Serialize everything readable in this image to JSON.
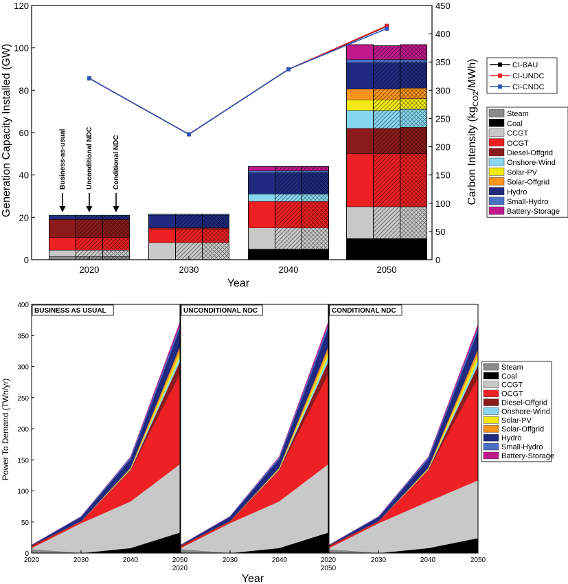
{
  "colors": {
    "Steam": "#8a8a8a",
    "Coal": "#000000",
    "CCGT": "#c8c8c8",
    "OCGT": "#ee2024",
    "Diesel-Offgrid": "#8b1a1a",
    "Onshore-Wind": "#87d7f0",
    "Solar-PV": "#f2ea12",
    "Solar-Offgrid": "#f7941d",
    "Hydro": "#1f2a80",
    "Small-Hydro": "#4a72c4",
    "Battery-Storage": "#c0198c",
    "CI-BAU": "#000000",
    "CI-UNDC": "#e8202a",
    "CI-CNDC": "#2f55b5"
  },
  "chart_data": [
    {
      "type": "bar",
      "stacked": true,
      "xlabel": "Year",
      "ylabel": "Generation Capacity Installed (GW)",
      "y2label_main": "Carbon Intensity (kg",
      "y2label_sub": "CO2",
      "y2label_end": "/MWh)",
      "ylim": [
        0,
        120
      ],
      "y2lim": [
        0,
        450
      ],
      "yticks": [
        "0",
        "20",
        "40",
        "60",
        "80",
        "100",
        "120"
      ],
      "y2ticks": [
        "0",
        "50",
        "100",
        "150",
        "200",
        "250",
        "300",
        "350",
        "400",
        "450"
      ],
      "categories": [
        "2020",
        "2030",
        "2040",
        "2050"
      ],
      "scenarios": [
        "BAU",
        "UNDC",
        "CNDC"
      ],
      "annotations": [
        "Business-as-usual",
        "Unconditional NDC",
        "Conditional NDC"
      ],
      "legend_tech": [
        "Steam",
        "Coal",
        "CCGT",
        "OCGT",
        "Diesel-Offgrid",
        "Onshore-Wind",
        "Solar-PV",
        "Solar-Offgrid",
        "Hydro",
        "Small-Hydro",
        "Battery-Storage"
      ],
      "capacity": {
        "2020": {
          "BAU": {
            "Steam": 1.5,
            "Coal": 0,
            "CCGT": 3,
            "OCGT": 6,
            "Diesel-Offgrid": 8.5,
            "Onshore-Wind": 0,
            "Solar-PV": 0,
            "Solar-Offgrid": 0,
            "Hydro": 1.5,
            "Small-Hydro": 0.5,
            "Battery-Storage": 0
          },
          "UNDC": {
            "Steam": 1.5,
            "Coal": 0,
            "CCGT": 3,
            "OCGT": 6,
            "Diesel-Offgrid": 8.5,
            "Onshore-Wind": 0,
            "Solar-PV": 0,
            "Solar-Offgrid": 0,
            "Hydro": 1.5,
            "Small-Hydro": 0.5,
            "Battery-Storage": 0
          },
          "CNDC": {
            "Steam": 1.5,
            "Coal": 0,
            "CCGT": 3,
            "OCGT": 6,
            "Diesel-Offgrid": 8.5,
            "Onshore-Wind": 0,
            "Solar-PV": 0,
            "Solar-Offgrid": 0,
            "Hydro": 1.5,
            "Small-Hydro": 0.5,
            "Battery-Storage": 0
          }
        },
        "2030": {
          "BAU": {
            "Steam": 0,
            "Coal": 0,
            "CCGT": 8,
            "OCGT": 6.5,
            "Diesel-Offgrid": 0.5,
            "Onshore-Wind": 0,
            "Solar-PV": 0,
            "Solar-Offgrid": 0,
            "Hydro": 6,
            "Small-Hydro": 0.5,
            "Battery-Storage": 0
          },
          "UNDC": {
            "Steam": 0,
            "Coal": 0,
            "CCGT": 8,
            "OCGT": 6.5,
            "Diesel-Offgrid": 0.5,
            "Onshore-Wind": 0,
            "Solar-PV": 0,
            "Solar-Offgrid": 0,
            "Hydro": 6,
            "Small-Hydro": 0.5,
            "Battery-Storage": 0
          },
          "CNDC": {
            "Steam": 0,
            "Coal": 0,
            "CCGT": 8,
            "OCGT": 6.5,
            "Diesel-Offgrid": 0.5,
            "Onshore-Wind": 0,
            "Solar-PV": 0,
            "Solar-Offgrid": 0,
            "Hydro": 6,
            "Small-Hydro": 0.5,
            "Battery-Storage": 0
          }
        },
        "2040": {
          "BAU": {
            "Steam": 0,
            "Coal": 5,
            "CCGT": 10,
            "OCGT": 12.5,
            "Diesel-Offgrid": 0,
            "Onshore-Wind": 3.5,
            "Solar-PV": 0,
            "Solar-Offgrid": 0,
            "Hydro": 10,
            "Small-Hydro": 1,
            "Battery-Storage": 2
          },
          "UNDC": {
            "Steam": 0,
            "Coal": 5,
            "CCGT": 10,
            "OCGT": 12.5,
            "Diesel-Offgrid": 0,
            "Onshore-Wind": 3.5,
            "Solar-PV": 0,
            "Solar-Offgrid": 0,
            "Hydro": 10,
            "Small-Hydro": 1,
            "Battery-Storage": 2
          },
          "CNDC": {
            "Steam": 0,
            "Coal": 5,
            "CCGT": 10,
            "OCGT": 12.5,
            "Diesel-Offgrid": 0,
            "Onshore-Wind": 3.5,
            "Solar-PV": 0,
            "Solar-Offgrid": 0,
            "Hydro": 10,
            "Small-Hydro": 1,
            "Battery-Storage": 2
          }
        },
        "2050": {
          "BAU": {
            "Steam": 0,
            "Coal": 10,
            "CCGT": 15,
            "OCGT": 25,
            "Diesel-Offgrid": 12,
            "Onshore-Wind": 8.5,
            "Solar-PV": 5,
            "Solar-Offgrid": 5,
            "Hydro": 12.5,
            "Small-Hydro": 1.5,
            "Battery-Storage": 7
          },
          "UNDC": {
            "Steam": 0,
            "Coal": 10,
            "CCGT": 15,
            "OCGT": 25,
            "Diesel-Offgrid": 12,
            "Onshore-Wind": 8.5,
            "Solar-PV": 5,
            "Solar-Offgrid": 5,
            "Hydro": 12.5,
            "Small-Hydro": 1.5,
            "Battery-Storage": 6.5
          },
          "CNDC": {
            "Steam": 0,
            "Coal": 10,
            "CCGT": 15,
            "OCGT": 25,
            "Diesel-Offgrid": 12.5,
            "Onshore-Wind": 8.5,
            "Solar-PV": 5,
            "Solar-Offgrid": 5,
            "Hydro": 12,
            "Small-Hydro": 1.5,
            "Battery-Storage": 7
          }
        }
      },
      "carbon_intensity": {
        "x": [
          "2020",
          "2030",
          "2040",
          "2050"
        ],
        "series": [
          {
            "name": "CI-BAU",
            "values": [
              321,
              222,
              337,
              413
            ]
          },
          {
            "name": "CI-UNDC",
            "values": [
              321,
              222,
              337,
              414
            ]
          },
          {
            "name": "CI-CNDC",
            "values": [
              321,
              222,
              337,
              409
            ]
          }
        ]
      }
    },
    {
      "type": "area",
      "stacked": true,
      "xlabel": "Year",
      "ylabel": "Power To Demand (TWh/yr)",
      "ylim": [
        0,
        400
      ],
      "yticks": [
        "0",
        "50",
        "100",
        "150",
        "200",
        "250",
        "300",
        "350",
        "400"
      ],
      "xtick_labels": [
        [
          "2020",
          "2030",
          "2040",
          "2050"
        ],
        [
          "2030",
          "2040",
          "2020"
        ],
        [
          "2030",
          "2040",
          "2050"
        ]
      ],
      "xtick_second_line": [
        "2020",
        "2050"
      ],
      "x": [
        2020,
        2030,
        2040,
        2050
      ],
      "legend_tech": [
        "Steam",
        "Coal",
        "CCGT",
        "OCGT",
        "Diesel-Offgrid",
        "Onshore-Wind",
        "Solar-PV",
        "Solar-Offgrid",
        "Hydro",
        "Small-Hydro",
        "Battery-Storage"
      ],
      "panels": [
        {
          "title": "BUSINESS AS USUAL",
          "stack": {
            "Steam": [
              6,
              0,
              0,
              0
            ],
            "Coal": [
              0,
              0,
              8,
              33
            ],
            "CCGT": [
              2,
              48,
              75,
              110
            ],
            "OCGT": [
              2,
              3,
              50,
              145
            ],
            "Diesel-Offgrid": [
              2,
              0,
              1,
              20
            ],
            "Onshore-Wind": [
              0,
              0,
              1,
              8
            ],
            "Solar-PV": [
              0,
              0,
              1,
              8
            ],
            "Solar-Offgrid": [
              0,
              0,
              1,
              8
            ],
            "Hydro": [
              1,
              7,
              14,
              30
            ],
            "Small-Hydro": [
              0,
              1,
              3,
              5
            ],
            "Battery-Storage": [
              0,
              0,
              1,
              5
            ]
          }
        },
        {
          "title": "UNCONDITIONAL NDC",
          "stack": {
            "Steam": [
              6,
              0,
              0,
              0
            ],
            "Coal": [
              0,
              0,
              8,
              33
            ],
            "CCGT": [
              2,
              48,
              75,
              110
            ],
            "OCGT": [
              2,
              3,
              50,
              145
            ],
            "Diesel-Offgrid": [
              2,
              0,
              1,
              20
            ],
            "Onshore-Wind": [
              0,
              0,
              1,
              8
            ],
            "Solar-PV": [
              0,
              0,
              1,
              8
            ],
            "Solar-Offgrid": [
              0,
              0,
              1,
              8
            ],
            "Hydro": [
              1,
              7,
              14,
              30
            ],
            "Small-Hydro": [
              0,
              1,
              3,
              5
            ],
            "Battery-Storage": [
              0,
              0,
              1,
              5
            ]
          }
        },
        {
          "title": "CONDITIONAL NDC",
          "stack": {
            "Steam": [
              6,
              0,
              0,
              0
            ],
            "Coal": [
              0,
              0,
              8,
              24
            ],
            "CCGT": [
              2,
              48,
              75,
              93
            ],
            "OCGT": [
              2,
              3,
              50,
              165
            ],
            "Diesel-Offgrid": [
              2,
              0,
              1,
              20
            ],
            "Onshore-Wind": [
              0,
              0,
              1,
              8
            ],
            "Solar-PV": [
              0,
              0,
              1,
              10
            ],
            "Solar-Offgrid": [
              0,
              0,
              1,
              8
            ],
            "Hydro": [
              1,
              7,
              14,
              30
            ],
            "Small-Hydro": [
              0,
              1,
              3,
              5
            ],
            "Battery-Storage": [
              0,
              0,
              1,
              5
            ]
          }
        }
      ]
    }
  ]
}
